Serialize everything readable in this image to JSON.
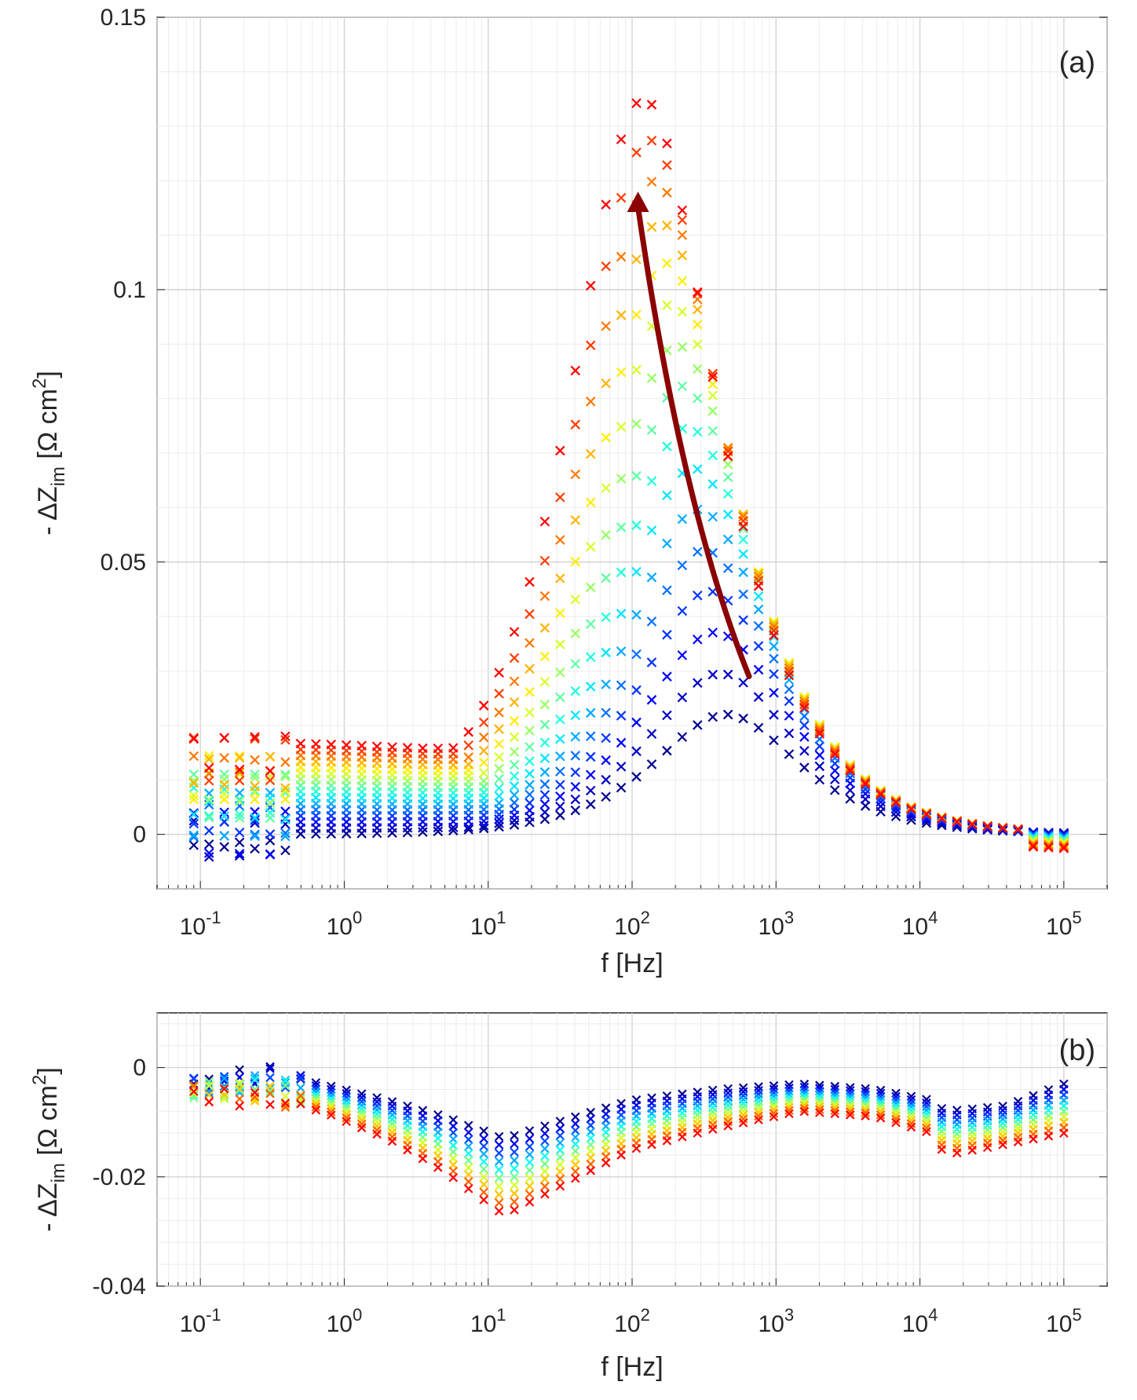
{
  "chart_data": [
    {
      "type": "scatter",
      "panel_label": "(a)",
      "x_scale": "log",
      "xlabel": "f [Hz]",
      "ylabel": {
        "prefix": "- ΔZ",
        "sub": "im",
        "unit_open": " [Ω cm",
        "sup": "2",
        "unit_close": "]"
      },
      "xlim": [
        0.05,
        200000
      ],
      "ylim": [
        -0.01,
        0.15
      ],
      "x_ticks": [
        {
          "value": 0.1,
          "base": "10",
          "exp": "-1"
        },
        {
          "value": 1,
          "base": "10",
          "exp": "0"
        },
        {
          "value": 10,
          "base": "10",
          "exp": "1"
        },
        {
          "value": 100,
          "base": "10",
          "exp": "2"
        },
        {
          "value": 1000,
          "base": "10",
          "exp": "3"
        },
        {
          "value": 10000,
          "base": "10",
          "exp": "4"
        },
        {
          "value": 100000,
          "base": "10",
          "exp": "5"
        }
      ],
      "y_ticks": [
        {
          "value": 0,
          "label": "0"
        },
        {
          "value": 0.05,
          "label": "0.05"
        },
        {
          "value": 0.1,
          "label": "0.1"
        },
        {
          "value": 0.15,
          "label": "0.15"
        }
      ],
      "grid": true,
      "marker": "x",
      "color_map": [
        "#00008f",
        "#0000ff",
        "#0080ff",
        "#00ffff",
        "#80ff80",
        "#ffff00",
        "#ff8000",
        "#ff0000"
      ],
      "series_count": 16,
      "profile": {
        "peak_freq_start": 450,
        "peak_freq_end": 120,
        "peak_value_start": 0.022,
        "peak_value_end": 0.135,
        "low_freq_value_start": 0.0,
        "low_freq_value_end": 0.017,
        "high_freq_value": 0.0
      },
      "annotation": {
        "type": "arrow",
        "color": "#8b0000",
        "from": {
          "f": 650,
          "z": 0.029
        },
        "via": {
          "f": 220,
          "z": 0.06
        },
        "to": {
          "f": 110,
          "z": 0.118
        }
      }
    },
    {
      "type": "scatter",
      "panel_label": "(b)",
      "x_scale": "log",
      "xlabel": "f [Hz]",
      "ylabel": {
        "prefix": "- ΔZ",
        "sub": "im",
        "unit_open": " [Ω cm",
        "sup": "2",
        "unit_close": "]"
      },
      "xlim": [
        0.05,
        200000
      ],
      "ylim": [
        -0.04,
        0.01
      ],
      "x_ticks": [
        {
          "value": 0.1,
          "base": "10",
          "exp": "-1"
        },
        {
          "value": 1,
          "base": "10",
          "exp": "0"
        },
        {
          "value": 10,
          "base": "10",
          "exp": "1"
        },
        {
          "value": 100,
          "base": "10",
          "exp": "2"
        },
        {
          "value": 1000,
          "base": "10",
          "exp": "3"
        },
        {
          "value": 10000,
          "base": "10",
          "exp": "4"
        },
        {
          "value": 100000,
          "base": "10",
          "exp": "5"
        }
      ],
      "y_ticks": [
        {
          "value": -0.04,
          "label": "-0.04"
        },
        {
          "value": -0.02,
          "label": "-0.02"
        },
        {
          "value": 0,
          "label": "0"
        }
      ],
      "grid": true,
      "marker": "x",
      "color_map": [
        "#00008f",
        "#0000ff",
        "#0080ff",
        "#00ffff",
        "#80ff80",
        "#ffff00",
        "#ff8000",
        "#ff0000"
      ],
      "series_count": 10,
      "profile_points": [
        {
          "f": 0.1,
          "top": -0.003,
          "bottom": -0.005
        },
        {
          "f": 0.3,
          "top": -0.001,
          "bottom": -0.006
        },
        {
          "f": 0.7,
          "top": -0.003,
          "bottom": -0.008
        },
        {
          "f": 2,
          "top": -0.006,
          "bottom": -0.013
        },
        {
          "f": 5,
          "top": -0.009,
          "bottom": -0.019
        },
        {
          "f": 13,
          "top": -0.013,
          "bottom": -0.027
        },
        {
          "f": 30,
          "top": -0.01,
          "bottom": -0.022
        },
        {
          "f": 100,
          "top": -0.006,
          "bottom": -0.015
        },
        {
          "f": 400,
          "top": -0.004,
          "bottom": -0.011
        },
        {
          "f": 1500,
          "top": -0.003,
          "bottom": -0.008
        },
        {
          "f": 5000,
          "top": -0.004,
          "bottom": -0.009
        },
        {
          "f": 12000,
          "top": -0.006,
          "bottom": -0.012
        },
        {
          "f": 15000,
          "top": -0.008,
          "bottom": -0.016
        },
        {
          "f": 40000,
          "top": -0.007,
          "bottom": -0.014
        },
        {
          "f": 100000,
          "top": -0.003,
          "bottom": -0.012
        }
      ]
    }
  ]
}
